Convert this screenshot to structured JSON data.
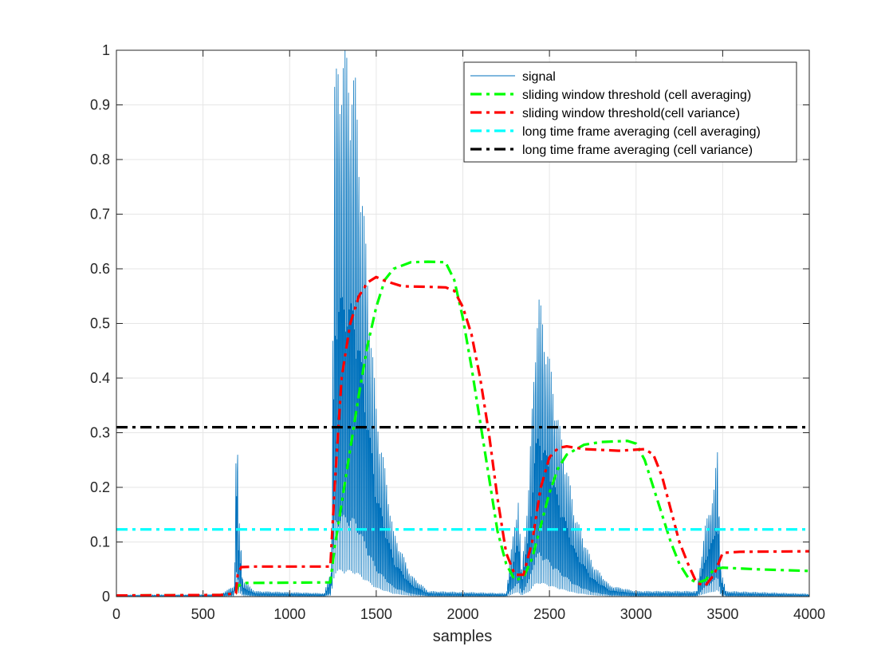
{
  "chart_data": {
    "type": "line",
    "title": "",
    "xlabel": "samples",
    "ylabel": "",
    "xlim": [
      0,
      4000
    ],
    "ylim": [
      0,
      1
    ],
    "xticks": [
      0,
      500,
      1000,
      1500,
      2000,
      2500,
      3000,
      3500,
      4000
    ],
    "yticks": [
      0,
      0.1,
      0.2,
      0.3,
      0.4,
      0.5,
      0.6,
      0.7,
      0.8,
      0.9,
      1
    ],
    "grid": true,
    "legend_position": "top-right",
    "series": [
      {
        "name": "signal",
        "color": "#0072BD",
        "style": "solid",
        "envelope": [
          [
            0,
            0.003
          ],
          [
            600,
            0.004
          ],
          [
            680,
            0.02
          ],
          [
            695,
            0.37
          ],
          [
            705,
            0.15
          ],
          [
            715,
            0.12
          ],
          [
            730,
            0.03
          ],
          [
            800,
            0.01
          ],
          [
            1200,
            0.006
          ],
          [
            1240,
            0.05
          ],
          [
            1260,
            0.94
          ],
          [
            1280,
            1.0
          ],
          [
            1330,
            1.0
          ],
          [
            1380,
            0.95
          ],
          [
            1450,
            0.6
          ],
          [
            1500,
            0.35
          ],
          [
            1600,
            0.12
          ],
          [
            1700,
            0.04
          ],
          [
            1800,
            0.01
          ],
          [
            2250,
            0.006
          ],
          [
            2300,
            0.14
          ],
          [
            2320,
            0.18
          ],
          [
            2340,
            0.05
          ],
          [
            2380,
            0.2
          ],
          [
            2420,
            0.5
          ],
          [
            2440,
            0.55
          ],
          [
            2470,
            0.5
          ],
          [
            2550,
            0.33
          ],
          [
            2650,
            0.15
          ],
          [
            2750,
            0.06
          ],
          [
            2850,
            0.02
          ],
          [
            3000,
            0.01
          ],
          [
            3350,
            0.01
          ],
          [
            3400,
            0.13
          ],
          [
            3450,
            0.2
          ],
          [
            3470,
            0.27
          ],
          [
            3490,
            0.05
          ],
          [
            3520,
            0.01
          ],
          [
            4000,
            0.005
          ]
        ]
      },
      {
        "name": "sliding window threshold (cell averaging)",
        "color": "#00FF00",
        "style": "dash-dot",
        "points": [
          [
            0,
            0.002
          ],
          [
            600,
            0.003
          ],
          [
            690,
            0.006
          ],
          [
            700,
            0.02
          ],
          [
            750,
            0.025
          ],
          [
            1200,
            0.026
          ],
          [
            1235,
            0.026
          ],
          [
            1260,
            0.09
          ],
          [
            1300,
            0.17
          ],
          [
            1350,
            0.27
          ],
          [
            1400,
            0.37
          ],
          [
            1450,
            0.46
          ],
          [
            1500,
            0.53
          ],
          [
            1550,
            0.58
          ],
          [
            1600,
            0.6
          ],
          [
            1700,
            0.612
          ],
          [
            1800,
            0.613
          ],
          [
            1900,
            0.612
          ],
          [
            1950,
            0.58
          ],
          [
            2000,
            0.51
          ],
          [
            2050,
            0.42
          ],
          [
            2100,
            0.32
          ],
          [
            2150,
            0.22
          ],
          [
            2200,
            0.12
          ],
          [
            2250,
            0.06
          ],
          [
            2300,
            0.03
          ],
          [
            2350,
            0.035
          ],
          [
            2400,
            0.07
          ],
          [
            2450,
            0.13
          ],
          [
            2500,
            0.19
          ],
          [
            2550,
            0.235
          ],
          [
            2600,
            0.26
          ],
          [
            2700,
            0.278
          ],
          [
            2800,
            0.283
          ],
          [
            2950,
            0.285
          ],
          [
            3000,
            0.28
          ],
          [
            3050,
            0.25
          ],
          [
            3100,
            0.2
          ],
          [
            3150,
            0.15
          ],
          [
            3200,
            0.1
          ],
          [
            3250,
            0.06
          ],
          [
            3300,
            0.035
          ],
          [
            3350,
            0.025
          ],
          [
            3400,
            0.03
          ],
          [
            3450,
            0.05
          ],
          [
            3500,
            0.053
          ],
          [
            3700,
            0.05
          ],
          [
            4000,
            0.047
          ]
        ]
      },
      {
        "name": "sliding window threshold(cell variance)",
        "color": "#FF0000",
        "style": "dash-dot",
        "points": [
          [
            0,
            0.002
          ],
          [
            600,
            0.003
          ],
          [
            690,
            0.006
          ],
          [
            700,
            0.04
          ],
          [
            720,
            0.054
          ],
          [
            800,
            0.055
          ],
          [
            1200,
            0.055
          ],
          [
            1235,
            0.055
          ],
          [
            1260,
            0.2
          ],
          [
            1300,
            0.4
          ],
          [
            1350,
            0.5
          ],
          [
            1400,
            0.55
          ],
          [
            1450,
            0.575
          ],
          [
            1500,
            0.585
          ],
          [
            1550,
            0.578
          ],
          [
            1650,
            0.568
          ],
          [
            1800,
            0.567
          ],
          [
            1900,
            0.566
          ],
          [
            1950,
            0.56
          ],
          [
            2000,
            0.53
          ],
          [
            2050,
            0.48
          ],
          [
            2100,
            0.4
          ],
          [
            2150,
            0.3
          ],
          [
            2200,
            0.18
          ],
          [
            2250,
            0.08
          ],
          [
            2300,
            0.04
          ],
          [
            2350,
            0.04
          ],
          [
            2400,
            0.1
          ],
          [
            2450,
            0.2
          ],
          [
            2500,
            0.255
          ],
          [
            2550,
            0.272
          ],
          [
            2600,
            0.275
          ],
          [
            2700,
            0.27
          ],
          [
            2900,
            0.267
          ],
          [
            3050,
            0.27
          ],
          [
            3100,
            0.26
          ],
          [
            3150,
            0.22
          ],
          [
            3200,
            0.16
          ],
          [
            3250,
            0.1
          ],
          [
            3300,
            0.06
          ],
          [
            3350,
            0.025
          ],
          [
            3400,
            0.02
          ],
          [
            3450,
            0.04
          ],
          [
            3500,
            0.08
          ],
          [
            3600,
            0.082
          ],
          [
            4000,
            0.083
          ]
        ]
      },
      {
        "name": "long time frame averaging (cell averaging)",
        "color": "#00FFFF",
        "style": "dash-dot",
        "points": [
          [
            0,
            0.123
          ],
          [
            4000,
            0.123
          ]
        ]
      },
      {
        "name": "long time frame averaging (cell variance)",
        "color": "#000000",
        "style": "dash-dot",
        "points": [
          [
            0,
            0.31
          ],
          [
            4000,
            0.31
          ]
        ]
      }
    ]
  }
}
